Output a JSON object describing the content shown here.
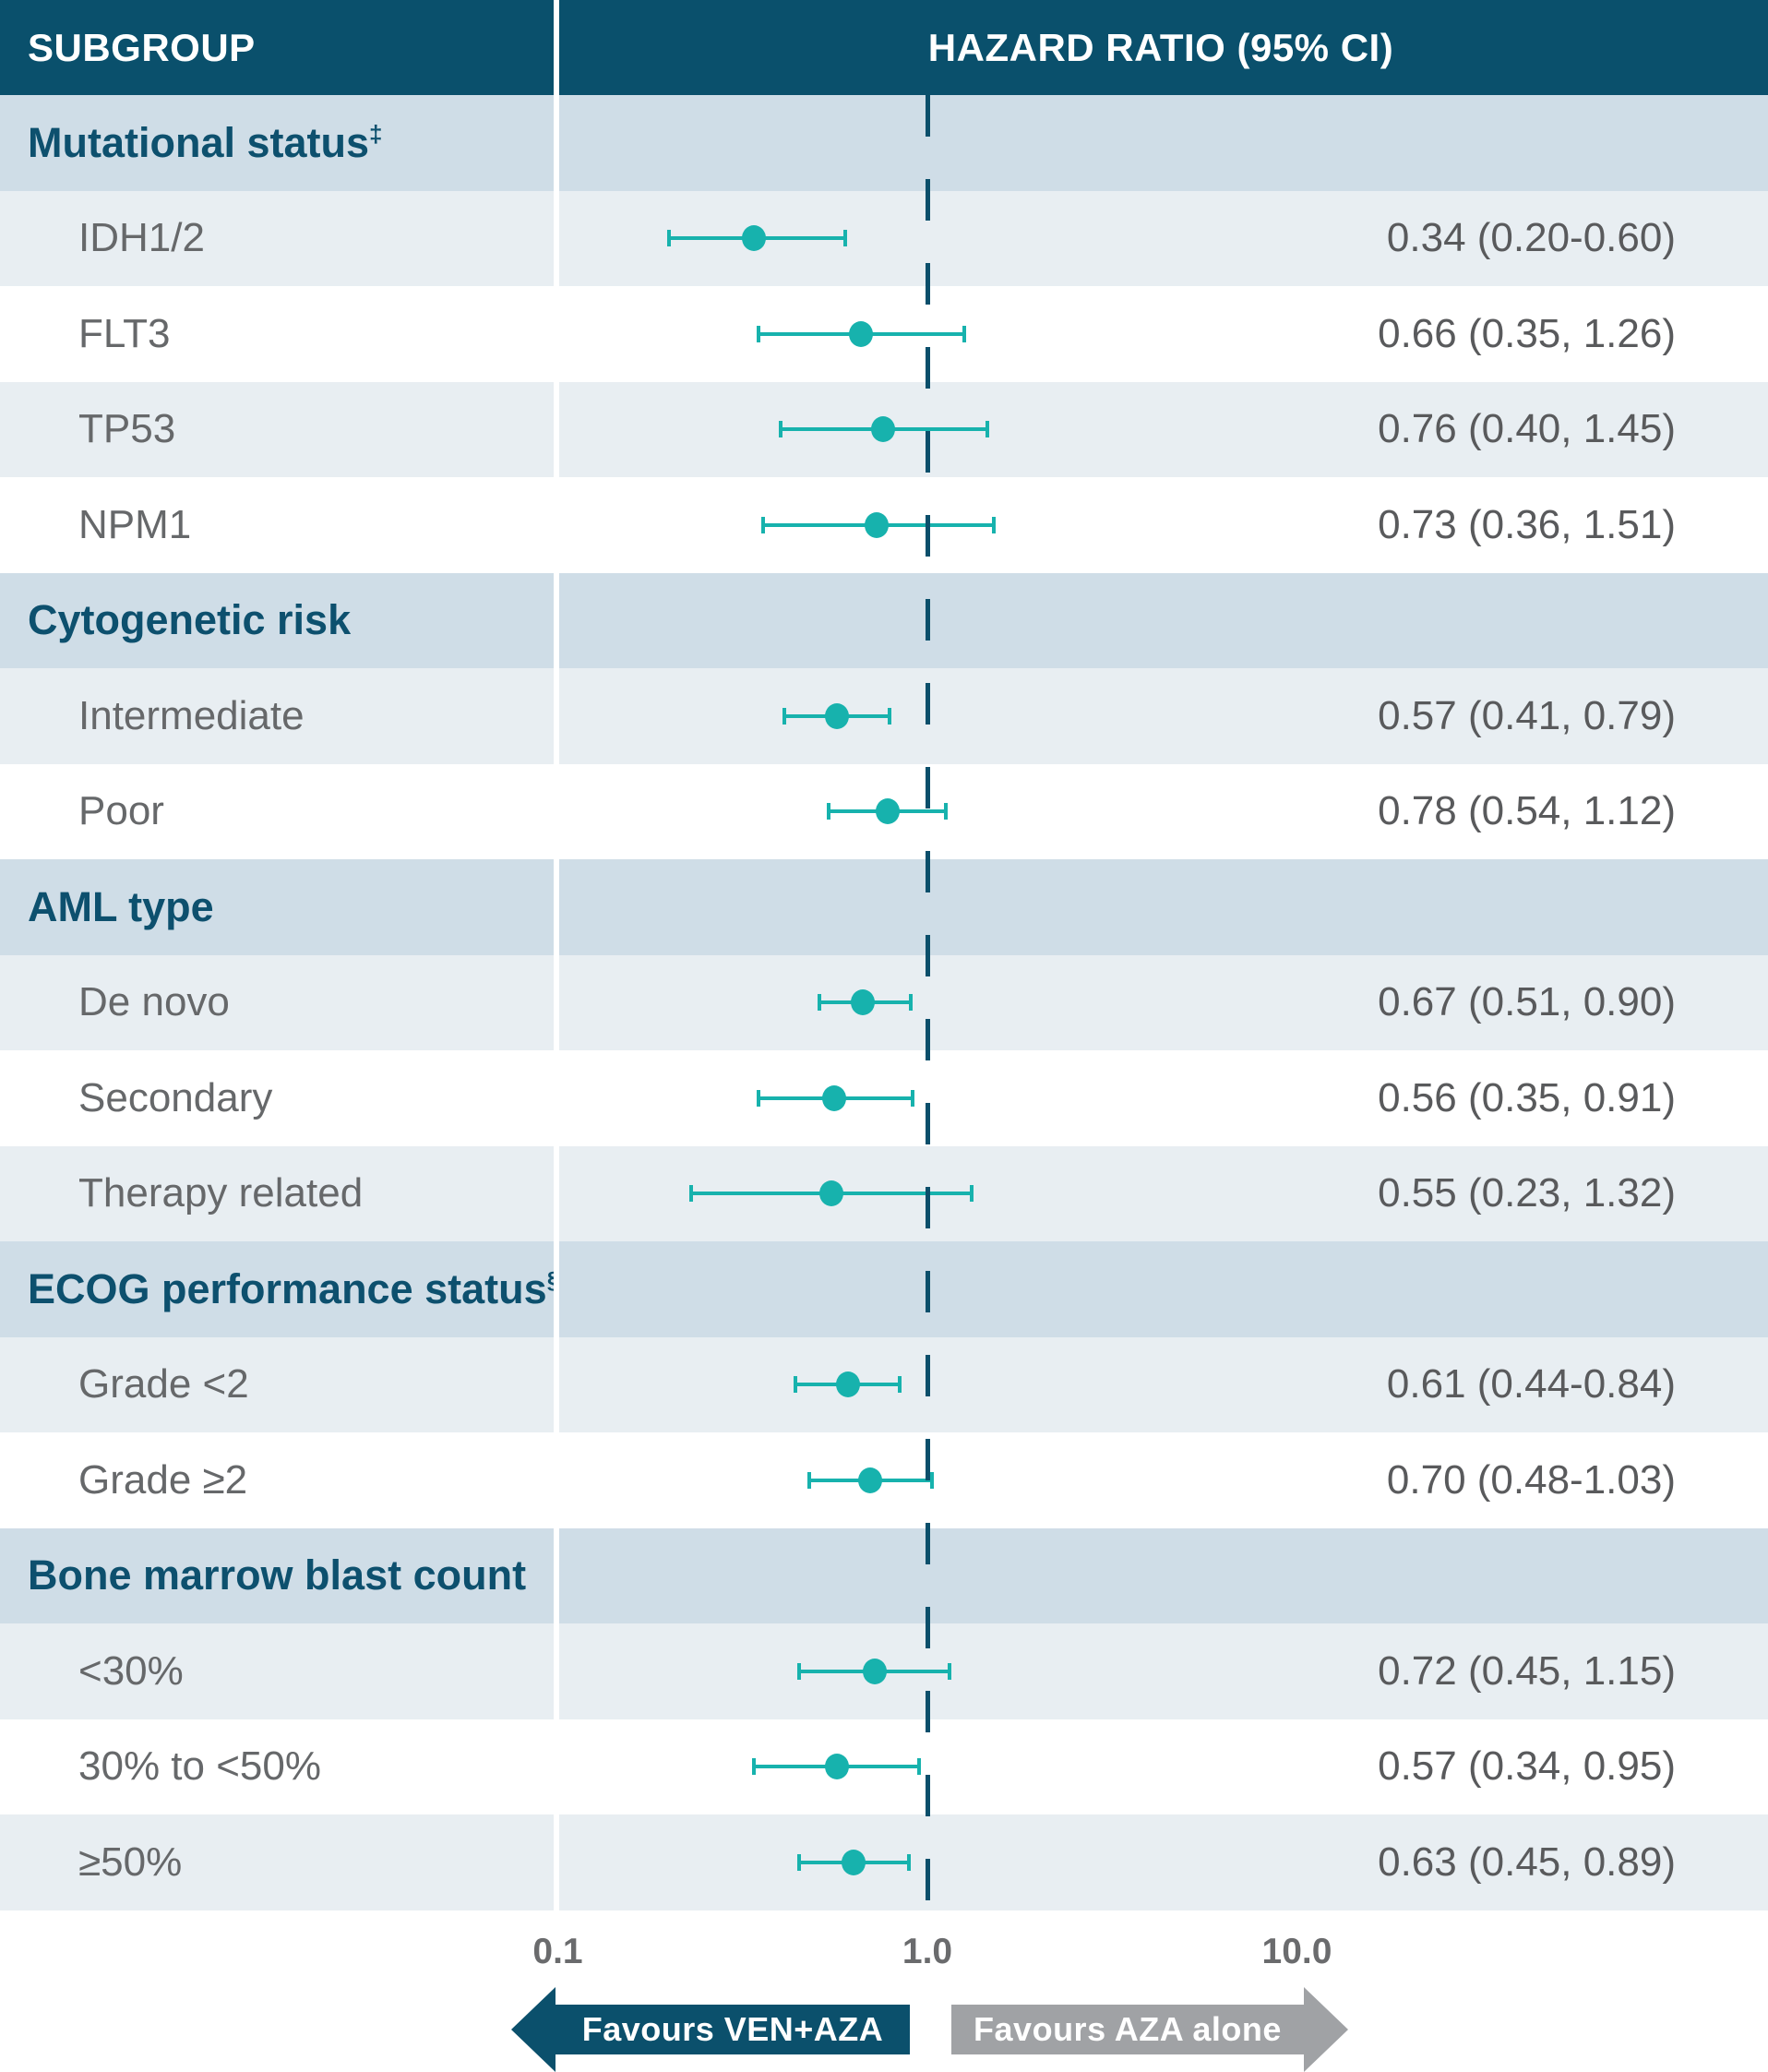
{
  "header": {
    "subgroup_label": "SUBGROUP",
    "hazard_label": "HAZARD RATIO (95% CI)"
  },
  "axis": {
    "tick_labels": [
      "0.1",
      "1.0",
      "10.0"
    ],
    "tick_values": [
      0.1,
      1.0,
      10.0
    ]
  },
  "arrows": {
    "left_label": "Favours VEN+AZA",
    "right_label": "Favours AZA alone"
  },
  "colors": {
    "header_bg": "#0a506c",
    "section_bg": "#cfdde7",
    "light_row_bg": "#e8eef2",
    "white_row_bg": "#ffffff",
    "section_text": "#0d506e",
    "item_text": "#66686a",
    "value_text": "#595a5c",
    "axis_text": "#6a6b6d",
    "marker_teal": "#17b2ad",
    "ref_line": "#0b4f6b",
    "left_arrow": "#0b506c",
    "right_arrow": "#a0a2a5",
    "divider": "#ffffff"
  },
  "chart_data": {
    "type": "forest",
    "xscale": "log",
    "xlim": [
      0.1,
      10.0
    ],
    "ref_value": 1.0,
    "value_column_header": "HAZARD RATIO (95% CI)",
    "groups": [
      {
        "label": "Mutational status",
        "sup": "‡",
        "items": [
          {
            "label": "IDH1/2",
            "hr": 0.34,
            "lo": 0.2,
            "hi": 0.6,
            "display": "0.34 (0.20-0.60)"
          },
          {
            "label": "FLT3",
            "hr": 0.66,
            "lo": 0.35,
            "hi": 1.26,
            "display": "0.66 (0.35, 1.26)"
          },
          {
            "label": "TP53",
            "hr": 0.76,
            "lo": 0.4,
            "hi": 1.45,
            "display": "0.76 (0.40, 1.45)"
          },
          {
            "label": "NPM1",
            "hr": 0.73,
            "lo": 0.36,
            "hi": 1.51,
            "display": "0.73 (0.36, 1.51)"
          }
        ]
      },
      {
        "label": "Cytogenetic risk",
        "sup": "",
        "items": [
          {
            "label": "Intermediate",
            "hr": 0.57,
            "lo": 0.41,
            "hi": 0.79,
            "display": "0.57 (0.41, 0.79)"
          },
          {
            "label": "Poor",
            "hr": 0.78,
            "lo": 0.54,
            "hi": 1.12,
            "display": "0.78 (0.54, 1.12)"
          }
        ]
      },
      {
        "label": "AML type",
        "sup": "",
        "items": [
          {
            "label": "De novo",
            "hr": 0.67,
            "lo": 0.51,
            "hi": 0.9,
            "display": "0.67 (0.51, 0.90)"
          },
          {
            "label": "Secondary",
            "hr": 0.56,
            "lo": 0.35,
            "hi": 0.91,
            "display": "0.56 (0.35, 0.91)"
          },
          {
            "label": "Therapy related",
            "hr": 0.55,
            "lo": 0.23,
            "hi": 1.32,
            "display": "0.55 (0.23, 1.32)"
          }
        ]
      },
      {
        "label": "ECOG performance status",
        "sup": "§",
        "items": [
          {
            "label": "Grade <2",
            "hr": 0.61,
            "lo": 0.44,
            "hi": 0.84,
            "display": "0.61 (0.44-0.84)"
          },
          {
            "label": "Grade ≥2",
            "hr": 0.7,
            "lo": 0.48,
            "hi": 1.03,
            "display": "0.70 (0.48-1.03)"
          }
        ]
      },
      {
        "label": "Bone marrow blast count",
        "sup": "",
        "items": [
          {
            "label": "<30%",
            "hr": 0.72,
            "lo": 0.45,
            "hi": 1.15,
            "display": "0.72 (0.45, 1.15)"
          },
          {
            "label": "30% to <50%",
            "hr": 0.57,
            "lo": 0.34,
            "hi": 0.95,
            "display": "0.57 (0.34, 0.95)"
          },
          {
            "label": "≥50%",
            "hr": 0.63,
            "lo": 0.45,
            "hi": 0.89,
            "display": "0.63 (0.45, 0.89)"
          }
        ]
      }
    ]
  }
}
